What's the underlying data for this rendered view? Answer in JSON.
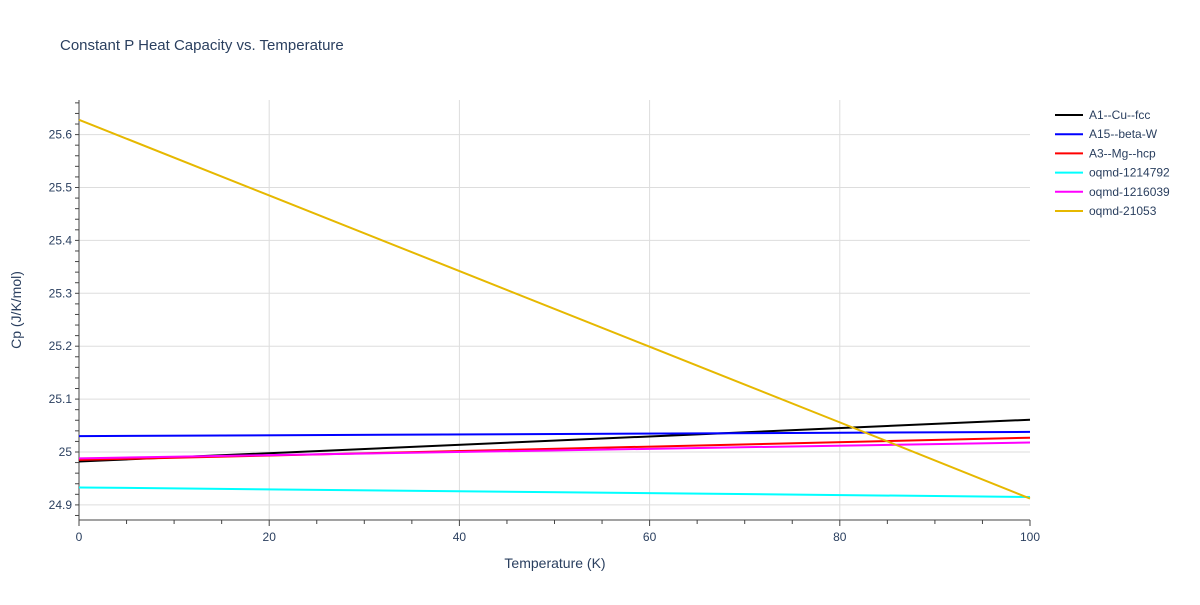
{
  "chart_data": {
    "type": "line",
    "title": "Constant P Heat Capacity vs. Temperature",
    "xlabel": "Temperature (K)",
    "ylabel": "Cp (J/K/mol)",
    "xlim": [
      0,
      100
    ],
    "ylim": [
      24.87,
      25.665
    ],
    "xticks": [
      0,
      20,
      40,
      60,
      80,
      100
    ],
    "xtick_labels": [
      "0",
      "20",
      "40",
      "60",
      "80",
      "100"
    ],
    "yticks": [
      24.9,
      25,
      25.1,
      25.2,
      25.3,
      25.4,
      25.5,
      25.6
    ],
    "ytick_labels": [
      "24.9",
      "25",
      "25.1",
      "25.2",
      "25.3",
      "25.4",
      "25.5",
      "25.6"
    ],
    "grid": true,
    "legend_position": "top-right",
    "series": [
      {
        "name": "A1--Cu--fcc",
        "color": "#000000",
        "x": [
          0,
          100
        ],
        "y": [
          24.982,
          25.061
        ]
      },
      {
        "name": "A15--beta-W",
        "color": "#0000ff",
        "x": [
          0,
          100
        ],
        "y": [
          25.03,
          25.038
        ]
      },
      {
        "name": "A3--Mg--hcp",
        "color": "#ff0000",
        "x": [
          0,
          100
        ],
        "y": [
          24.985,
          25.027
        ]
      },
      {
        "name": "oqmd-1214792",
        "color": "#00ffff",
        "x": [
          0,
          100
        ],
        "y": [
          24.933,
          24.915
        ]
      },
      {
        "name": "oqmd-1216039",
        "color": "#ff00ff",
        "x": [
          0,
          100
        ],
        "y": [
          24.988,
          25.018
        ]
      },
      {
        "name": "oqmd-21053",
        "color": "#e6b800",
        "x": [
          0,
          20,
          40,
          60,
          80,
          100
        ],
        "y": [
          25.628,
          25.485,
          25.342,
          25.199,
          25.056,
          24.912
        ]
      }
    ]
  }
}
